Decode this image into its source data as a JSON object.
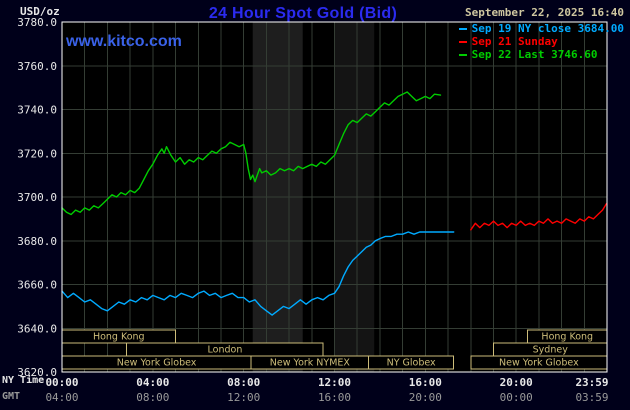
{
  "colors": {
    "background": "#00001a",
    "plot_bg": "#000000",
    "grid": "#343d34",
    "frame": "#ffffff",
    "axis_text": "#e8e8e8",
    "gmt_text": "#999999",
    "session": "#cdbd7a",
    "title": "#2b2bf0",
    "link": "#3a62e8",
    "datetime": "#cfc7a0"
  },
  "header": {
    "unit": "USD/oz",
    "title": "24 Hour Spot Gold (Bid)",
    "datetime": "September 22, 2025 16:40",
    "watermark": "www.kitco.com"
  },
  "legend": [
    {
      "label": "Sep 19 NY close 3684.00",
      "color": "#00aaff"
    },
    {
      "label": "Sep 21 Sunday",
      "color": "#ff0000"
    },
    {
      "label": "Sep 22 Last 3746.60",
      "color": "#00cc00"
    }
  ],
  "axis": {
    "ny_label": "NY Time",
    "gmt_label": "GMT"
  },
  "chart_data": {
    "type": "line",
    "title": "24 Hour Spot Gold (Bid)",
    "unit": "USD/oz",
    "as_of": "September 22, 2025 16:40",
    "key_values": {
      "sep19_ny_close": 3684.0,
      "sep22_last": 3746.6
    },
    "x_axis": {
      "label": "NY Time",
      "range_hours": [
        0,
        24
      ],
      "ticks": [
        {
          "hour": 0,
          "ny": "00:00",
          "gmt": "04:00"
        },
        {
          "hour": 4,
          "ny": "04:00",
          "gmt": "08:00"
        },
        {
          "hour": 8,
          "ny": "08:00",
          "gmt": "12:00"
        },
        {
          "hour": 12,
          "ny": "12:00",
          "gmt": "16:00"
        },
        {
          "hour": 16,
          "ny": "16:00",
          "gmt": "20:00"
        },
        {
          "hour": 20,
          "ny": "20:00",
          "gmt": "00:00"
        },
        {
          "hour": 23.983,
          "ny": "23:59",
          "gmt": "03:59"
        }
      ]
    },
    "y_axis": {
      "range": [
        3620,
        3780
      ],
      "tick_step": 20,
      "ticks": [
        3620,
        3640,
        3660,
        3680,
        3700,
        3720,
        3740,
        3760,
        3780
      ]
    },
    "grid_hours_step": 1,
    "bands": [
      {
        "start": 8.4,
        "end": 10.6,
        "color": "#1e1e1e"
      },
      {
        "start": 12.0,
        "end": 13.75,
        "color": "#141414"
      }
    ],
    "sessions": [
      {
        "row": 0,
        "start": 0,
        "end": 5.0,
        "label": "Hong Kong"
      },
      {
        "row": 0,
        "start": 20.5,
        "end": 24,
        "label": "Hong Kong"
      },
      {
        "row": 1,
        "start": 2.85,
        "end": 11.5,
        "label": "London"
      },
      {
        "row": 1,
        "start": 19.0,
        "end": 24,
        "label": "Sydney"
      },
      {
        "row": 2,
        "start": 0,
        "end": 8.33,
        "label": "New York Globex"
      },
      {
        "row": 2,
        "start": 8.33,
        "end": 13.5,
        "label": "New York NYMEX"
      },
      {
        "row": 2,
        "start": 13.5,
        "end": 17.25,
        "label": "NY Globex"
      },
      {
        "row": 2,
        "start": 18.0,
        "end": 24,
        "label": "New York Globex"
      }
    ],
    "series": [
      {
        "name": "Sep 19 NY close 3684.00",
        "color": "#00aaff",
        "points": [
          [
            0,
            3657
          ],
          [
            0.25,
            3654
          ],
          [
            0.5,
            3656
          ],
          [
            0.75,
            3654
          ],
          [
            1,
            3652
          ],
          [
            1.25,
            3653
          ],
          [
            1.5,
            3651
          ],
          [
            1.75,
            3649
          ],
          [
            2,
            3648
          ],
          [
            2.25,
            3650
          ],
          [
            2.5,
            3652
          ],
          [
            2.75,
            3651
          ],
          [
            3,
            3653
          ],
          [
            3.25,
            3652
          ],
          [
            3.5,
            3654
          ],
          [
            3.75,
            3653
          ],
          [
            4,
            3655
          ],
          [
            4.25,
            3654
          ],
          [
            4.5,
            3653
          ],
          [
            4.75,
            3655
          ],
          [
            5,
            3654
          ],
          [
            5.25,
            3656
          ],
          [
            5.5,
            3655
          ],
          [
            5.75,
            3654
          ],
          [
            6,
            3656
          ],
          [
            6.25,
            3657
          ],
          [
            6.5,
            3655
          ],
          [
            6.75,
            3656
          ],
          [
            7,
            3654
          ],
          [
            7.25,
            3655
          ],
          [
            7.5,
            3656
          ],
          [
            7.75,
            3654
          ],
          [
            8,
            3654
          ],
          [
            8.25,
            3652
          ],
          [
            8.5,
            3653
          ],
          [
            8.75,
            3650
          ],
          [
            9,
            3648
          ],
          [
            9.25,
            3646
          ],
          [
            9.5,
            3648
          ],
          [
            9.75,
            3650
          ],
          [
            10,
            3649
          ],
          [
            10.25,
            3651
          ],
          [
            10.5,
            3653
          ],
          [
            10.75,
            3651
          ],
          [
            11,
            3653
          ],
          [
            11.25,
            3654
          ],
          [
            11.5,
            3653
          ],
          [
            11.75,
            3655
          ],
          [
            12,
            3656
          ],
          [
            12.2,
            3659
          ],
          [
            12.4,
            3664
          ],
          [
            12.6,
            3668
          ],
          [
            12.8,
            3671
          ],
          [
            13,
            3673
          ],
          [
            13.2,
            3675
          ],
          [
            13.4,
            3677
          ],
          [
            13.6,
            3678
          ],
          [
            13.8,
            3680
          ],
          [
            14,
            3681
          ],
          [
            14.25,
            3682
          ],
          [
            14.5,
            3682
          ],
          [
            14.75,
            3683
          ],
          [
            15,
            3683
          ],
          [
            15.25,
            3684
          ],
          [
            15.5,
            3683
          ],
          [
            15.75,
            3684
          ],
          [
            16,
            3684
          ],
          [
            16.25,
            3684
          ],
          [
            16.5,
            3684
          ],
          [
            16.75,
            3684
          ],
          [
            17,
            3684
          ],
          [
            17.25,
            3684
          ]
        ]
      },
      {
        "name": "Sep 21 Sunday",
        "color": "#ff0000",
        "points": [
          [
            18,
            3685
          ],
          [
            18.2,
            3688
          ],
          [
            18.4,
            3686
          ],
          [
            18.6,
            3688
          ],
          [
            18.8,
            3687
          ],
          [
            19,
            3689
          ],
          [
            19.2,
            3687
          ],
          [
            19.4,
            3688
          ],
          [
            19.6,
            3686
          ],
          [
            19.8,
            3688
          ],
          [
            20,
            3687
          ],
          [
            20.2,
            3689
          ],
          [
            20.4,
            3687
          ],
          [
            20.6,
            3688
          ],
          [
            20.8,
            3687
          ],
          [
            21,
            3689
          ],
          [
            21.2,
            3688
          ],
          [
            21.4,
            3690
          ],
          [
            21.6,
            3688
          ],
          [
            21.8,
            3689
          ],
          [
            22,
            3688
          ],
          [
            22.2,
            3690
          ],
          [
            22.4,
            3689
          ],
          [
            22.6,
            3688
          ],
          [
            22.8,
            3690
          ],
          [
            23,
            3689
          ],
          [
            23.2,
            3691
          ],
          [
            23.4,
            3690
          ],
          [
            23.6,
            3692
          ],
          [
            23.8,
            3694
          ],
          [
            23.98,
            3697
          ]
        ]
      },
      {
        "name": "Sep 22 Last 3746.60",
        "color": "#00cc00",
        "points": [
          [
            0,
            3695
          ],
          [
            0.2,
            3693
          ],
          [
            0.4,
            3692
          ],
          [
            0.6,
            3694
          ],
          [
            0.8,
            3693
          ],
          [
            1,
            3695
          ],
          [
            1.2,
            3694
          ],
          [
            1.4,
            3696
          ],
          [
            1.6,
            3695
          ],
          [
            1.8,
            3697
          ],
          [
            2,
            3699
          ],
          [
            2.2,
            3701
          ],
          [
            2.4,
            3700
          ],
          [
            2.6,
            3702
          ],
          [
            2.8,
            3701
          ],
          [
            3,
            3703
          ],
          [
            3.2,
            3702
          ],
          [
            3.4,
            3704
          ],
          [
            3.6,
            3708
          ],
          [
            3.8,
            3712
          ],
          [
            4,
            3715
          ],
          [
            4.2,
            3719
          ],
          [
            4.4,
            3722
          ],
          [
            4.5,
            3720
          ],
          [
            4.6,
            3723
          ],
          [
            4.8,
            3719
          ],
          [
            5,
            3716
          ],
          [
            5.2,
            3718
          ],
          [
            5.4,
            3715
          ],
          [
            5.6,
            3717
          ],
          [
            5.8,
            3716
          ],
          [
            6,
            3718
          ],
          [
            6.2,
            3717
          ],
          [
            6.4,
            3719
          ],
          [
            6.6,
            3721
          ],
          [
            6.8,
            3720
          ],
          [
            7,
            3722
          ],
          [
            7.2,
            3723
          ],
          [
            7.4,
            3725
          ],
          [
            7.6,
            3724
          ],
          [
            7.8,
            3723
          ],
          [
            8,
            3724
          ],
          [
            8.1,
            3720
          ],
          [
            8.2,
            3713
          ],
          [
            8.3,
            3708
          ],
          [
            8.4,
            3710
          ],
          [
            8.5,
            3707
          ],
          [
            8.6,
            3710
          ],
          [
            8.7,
            3713
          ],
          [
            8.8,
            3711
          ],
          [
            9,
            3712
          ],
          [
            9.2,
            3710
          ],
          [
            9.4,
            3711
          ],
          [
            9.6,
            3713
          ],
          [
            9.8,
            3712
          ],
          [
            10,
            3713
          ],
          [
            10.2,
            3712
          ],
          [
            10.4,
            3714
          ],
          [
            10.6,
            3713
          ],
          [
            10.8,
            3714
          ],
          [
            11,
            3715
          ],
          [
            11.2,
            3714
          ],
          [
            11.4,
            3716
          ],
          [
            11.6,
            3715
          ],
          [
            11.8,
            3717
          ],
          [
            12,
            3719
          ],
          [
            12.2,
            3724
          ],
          [
            12.4,
            3729
          ],
          [
            12.6,
            3733
          ],
          [
            12.8,
            3735
          ],
          [
            13,
            3734
          ],
          [
            13.2,
            3736
          ],
          [
            13.4,
            3738
          ],
          [
            13.6,
            3737
          ],
          [
            13.8,
            3739
          ],
          [
            14,
            3741
          ],
          [
            14.2,
            3743
          ],
          [
            14.4,
            3742
          ],
          [
            14.6,
            3744
          ],
          [
            14.8,
            3746
          ],
          [
            15,
            3747
          ],
          [
            15.2,
            3748
          ],
          [
            15.4,
            3746
          ],
          [
            15.6,
            3744
          ],
          [
            15.8,
            3745
          ],
          [
            16,
            3746
          ],
          [
            16.2,
            3745
          ],
          [
            16.4,
            3747
          ],
          [
            16.67,
            3746.6
          ]
        ]
      }
    ]
  }
}
